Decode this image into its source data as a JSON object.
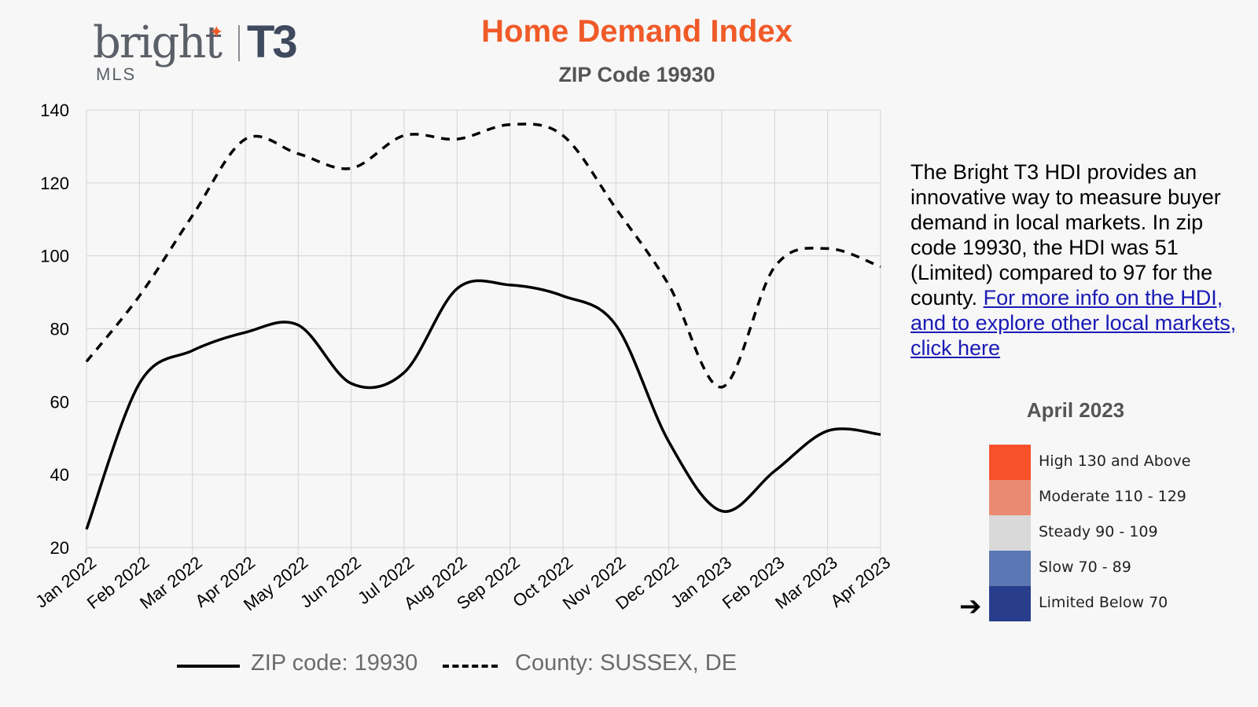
{
  "logo": {
    "brand": "bright",
    "sub": "MLS",
    "partner": "T3"
  },
  "header": {
    "title": "Home Demand Index",
    "subtitle": "ZIP Code 19930"
  },
  "description": {
    "text": "The Bright T3 HDI provides an innovative way to measure buyer demand in local markets. In zip code 19930, the HDI was 51 (Limited) compared to 97 for the county.",
    "link_text": "For more info on the HDI, and to explore other local markets, click here"
  },
  "legend": {
    "title": "April 2023",
    "items": [
      {
        "label": "High 130 and Above",
        "color": "#f6512a"
      },
      {
        "label": "Moderate 110 - 129",
        "color": "#ea8a72"
      },
      {
        "label": "Steady 90 - 109",
        "color": "#d9d9d9"
      },
      {
        "label": "Slow 70 - 89",
        "color": "#5b78b4"
      },
      {
        "label": "Limited Below 70",
        "color": "#283e8c"
      }
    ],
    "arrow_icon": "right-arrow-icon"
  },
  "chart_data": {
    "type": "line",
    "title": "Home Demand Index",
    "subtitle": "ZIP Code 19930",
    "categories": [
      "Jan 2022",
      "Feb 2022",
      "Mar 2022",
      "Apr 2022",
      "May 2022",
      "Jun 2022",
      "Jul 2022",
      "Aug 2022",
      "Sep 2022",
      "Oct 2022",
      "Nov 2022",
      "Dec 2022",
      "Jan 2023",
      "Feb 2023",
      "Mar 2023",
      "Apr 2023"
    ],
    "ylim": [
      20,
      140
    ],
    "yticks": [
      20,
      40,
      60,
      80,
      100,
      120,
      140
    ],
    "grid": true,
    "series": [
      {
        "name": "ZIP code: 19930",
        "style": "solid",
        "values": [
          25,
          65,
          74,
          79,
          81,
          65,
          68,
          91,
          92,
          89,
          81,
          49,
          30,
          41,
          52,
          51
        ]
      },
      {
        "name": "County: SUSSEX, DE",
        "style": "dashed",
        "values": [
          71,
          89,
          111,
          132,
          128,
          124,
          133,
          132,
          136,
          133,
          113,
          92,
          64,
          97,
          102,
          97
        ]
      }
    ]
  }
}
